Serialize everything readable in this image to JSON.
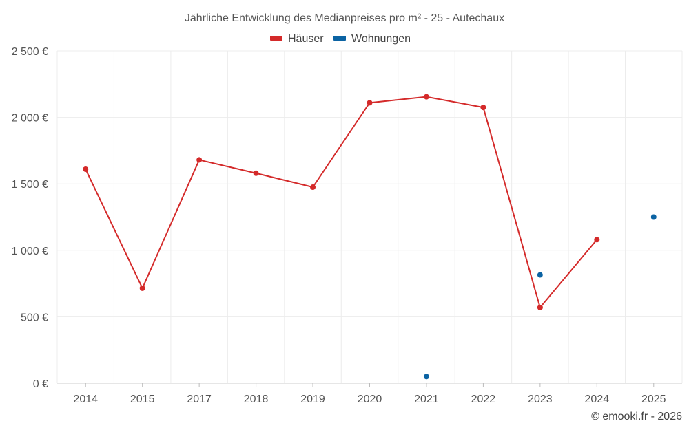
{
  "chart_data": {
    "type": "line",
    "title": "Jährliche Entwicklung des Medianpreises pro m² - 25 - Autechaux",
    "categories": [
      "2014",
      "2015",
      "2017",
      "2018",
      "2019",
      "2020",
      "2021",
      "2022",
      "2023",
      "2024",
      "2025"
    ],
    "ylim": [
      0,
      2500
    ],
    "yticks": [
      0,
      500,
      1000,
      1500,
      2000,
      2500
    ],
    "ytick_labels": [
      "0 €",
      "500 €",
      "1 000 €",
      "1 500 €",
      "2 000 €",
      "2 500 €"
    ],
    "grid": true,
    "legend_position": "top",
    "series": [
      {
        "name": "Häuser",
        "color": "#d42a2a",
        "values": [
          1610,
          715,
          1680,
          1580,
          1475,
          2110,
          2155,
          2075,
          570,
          1080,
          null
        ]
      },
      {
        "name": "Wohnungen",
        "color": "#0b63a3",
        "values": [
          null,
          null,
          null,
          null,
          null,
          null,
          50,
          null,
          815,
          null,
          1250
        ]
      }
    ]
  },
  "credit": "© emooki.fr - 2026"
}
